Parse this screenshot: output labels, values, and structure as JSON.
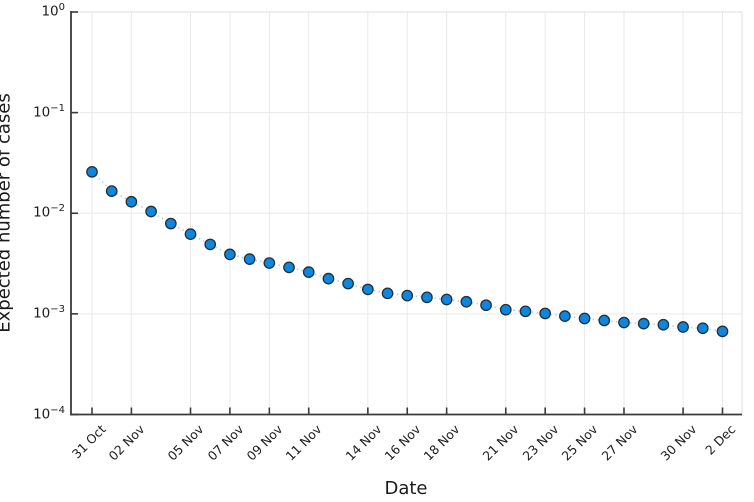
{
  "figure": {
    "xlabel": "Date",
    "ylabel": "Expected number of cases"
  },
  "chart_data": {
    "type": "line",
    "subtype": "scatter-with-dotted-line",
    "title": "",
    "xlabel": "Date",
    "ylabel": "Expected number of cases",
    "yscale": "log10",
    "ylim": [
      0.0001,
      1.0
    ],
    "grid": true,
    "legend_position": "none",
    "x": [
      "31 Oct",
      "01 Nov",
      "02 Nov",
      "03 Nov",
      "04 Nov",
      "05 Nov",
      "06 Nov",
      "07 Nov",
      "08 Nov",
      "09 Nov",
      "10 Nov",
      "11 Nov",
      "12 Nov",
      "13 Nov",
      "14 Nov",
      "15 Nov",
      "16 Nov",
      "17 Nov",
      "18 Nov",
      "19 Nov",
      "20 Nov",
      "21 Nov",
      "22 Nov",
      "23 Nov",
      "24 Nov",
      "25 Nov",
      "26 Nov",
      "27 Nov",
      "28 Nov",
      "29 Nov",
      "30 Nov",
      "01 Dec",
      "02 Dec"
    ],
    "series": [
      {
        "name": "expected-cases",
        "values": [
          0.0258,
          0.0166,
          0.013,
          0.0104,
          0.0079,
          0.0062,
          0.0049,
          0.0039,
          0.0035,
          0.0032,
          0.0029,
          0.0026,
          0.00224,
          0.002,
          0.00175,
          0.0016,
          0.00152,
          0.00146,
          0.00139,
          0.00132,
          0.00122,
          0.0011,
          0.00106,
          0.00101,
          0.00095,
          0.0009,
          0.00086,
          0.00082,
          0.0008,
          0.00078,
          0.00074,
          0.00072,
          0.00067
        ]
      }
    ],
    "xticks": [
      {
        "label": "31 Oct",
        "index": 0
      },
      {
        "label": "02 Nov",
        "index": 2
      },
      {
        "label": "05 Nov",
        "index": 5
      },
      {
        "label": "07 Nov",
        "index": 7
      },
      {
        "label": "09 Nov",
        "index": 9
      },
      {
        "label": "11 Nov",
        "index": 11
      },
      {
        "label": "14 Nov",
        "index": 14
      },
      {
        "label": "16 Nov",
        "index": 16
      },
      {
        "label": "18 Nov",
        "index": 18
      },
      {
        "label": "21 Nov",
        "index": 21
      },
      {
        "label": "23 Nov",
        "index": 23
      },
      {
        "label": "25 Nov",
        "index": 25
      },
      {
        "label": "27 Nov",
        "index": 27
      },
      {
        "label": "30 Nov",
        "index": 30
      },
      {
        "label": "2 Dec",
        "index": 32
      }
    ],
    "yticks": [
      {
        "base": "10",
        "exp": "0",
        "exponent": 0
      },
      {
        "base": "10",
        "exp": "−1",
        "exponent": -1
      },
      {
        "base": "10",
        "exp": "−2",
        "exponent": -2
      },
      {
        "base": "10",
        "exp": "−3",
        "exponent": -3
      },
      {
        "base": "10",
        "exp": "−4",
        "exponent": -4
      }
    ],
    "colors": {
      "marker_fill": "#0d86dd",
      "marker_stroke": "#22303a",
      "line": "#a6d3f3",
      "grid": "#e9e9e9",
      "axis": "#3a3a3a",
      "frame_light": "#e4e4e4",
      "text": "#1c1c1c"
    }
  }
}
